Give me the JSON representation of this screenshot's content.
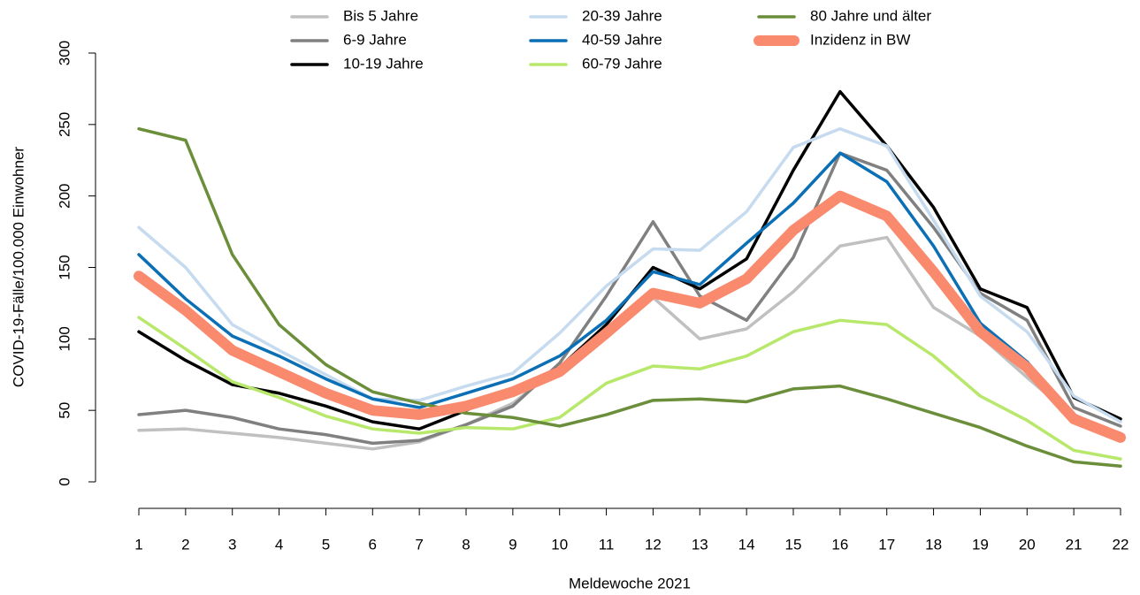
{
  "chart_data": {
    "type": "line",
    "xlabel": "Meldewoche 2021",
    "ylabel": "COVID-19-Fälle/100.000 Einwohner",
    "x": [
      1,
      2,
      3,
      4,
      5,
      6,
      7,
      8,
      9,
      10,
      11,
      12,
      13,
      14,
      15,
      16,
      17,
      18,
      19,
      20,
      21,
      22
    ],
    "xlim": [
      1,
      22
    ],
    "xticks": [
      1,
      2,
      3,
      4,
      5,
      6,
      7,
      8,
      9,
      10,
      11,
      12,
      13,
      14,
      15,
      16,
      17,
      18,
      19,
      20,
      21,
      22
    ],
    "ylim": [
      0,
      300
    ],
    "yticks": [
      0,
      50,
      100,
      150,
      200,
      250,
      300
    ],
    "legend": "top",
    "series": [
      {
        "name": "Bis 5 Jahre",
        "color": "#c0c0c0",
        "linewidth": 3.5,
        "values": [
          36,
          37,
          34,
          31,
          27,
          23,
          28,
          40,
          55,
          80,
          107,
          129,
          100,
          107,
          133,
          165,
          171,
          122,
          102,
          73,
          45,
          34
        ]
      },
      {
        "name": "6-9 Jahre",
        "color": "#808080",
        "linewidth": 3.5,
        "values": [
          47,
          50,
          45,
          37,
          33,
          27,
          29,
          40,
          53,
          83,
          130,
          182,
          130,
          113,
          157,
          230,
          218,
          178,
          132,
          113,
          52,
          39
        ]
      },
      {
        "name": "10-19 Jahre",
        "color": "#000000",
        "linewidth": 3.5,
        "values": [
          105,
          85,
          68,
          62,
          53,
          42,
          37,
          50,
          65,
          80,
          110,
          150,
          135,
          156,
          218,
          273,
          235,
          192,
          135,
          122,
          59,
          44
        ]
      },
      {
        "name": "20-39 Jahre",
        "color": "#c6dbef",
        "linewidth": 3.5,
        "values": [
          178,
          150,
          110,
          92,
          75,
          58,
          57,
          67,
          76,
          104,
          137,
          163,
          162,
          189,
          234,
          247,
          235,
          183,
          130,
          105,
          60,
          42
        ]
      },
      {
        "name": "40-59 Jahre",
        "color": "#0b6fb5",
        "linewidth": 3.5,
        "values": [
          159,
          128,
          102,
          88,
          72,
          58,
          52,
          62,
          72,
          88,
          113,
          147,
          138,
          167,
          195,
          230,
          210,
          165,
          111,
          84,
          47,
          32
        ]
      },
      {
        "name": "60-79 Jahre",
        "color": "#b8e86b",
        "linewidth": 3.5,
        "values": [
          115,
          93,
          70,
          59,
          46,
          37,
          34,
          38,
          37,
          45,
          69,
          81,
          79,
          88,
          105,
          113,
          110,
          88,
          60,
          43,
          22,
          16
        ]
      },
      {
        "name": "80 Jahre und älter",
        "color": "#6b8e3a",
        "linewidth": 3.5,
        "values": [
          247,
          239,
          159,
          110,
          82,
          63,
          55,
          48,
          45,
          39,
          47,
          57,
          58,
          56,
          65,
          67,
          58,
          48,
          38,
          25,
          14,
          11
        ]
      },
      {
        "name": "Inzidenz in BW",
        "color": "#fa8a6e",
        "linewidth": 12,
        "values": [
          144,
          120,
          92,
          77,
          62,
          50,
          47,
          53,
          63,
          77,
          104,
          132,
          125,
          142,
          176,
          200,
          186,
          147,
          105,
          80,
          44,
          31
        ]
      }
    ]
  }
}
